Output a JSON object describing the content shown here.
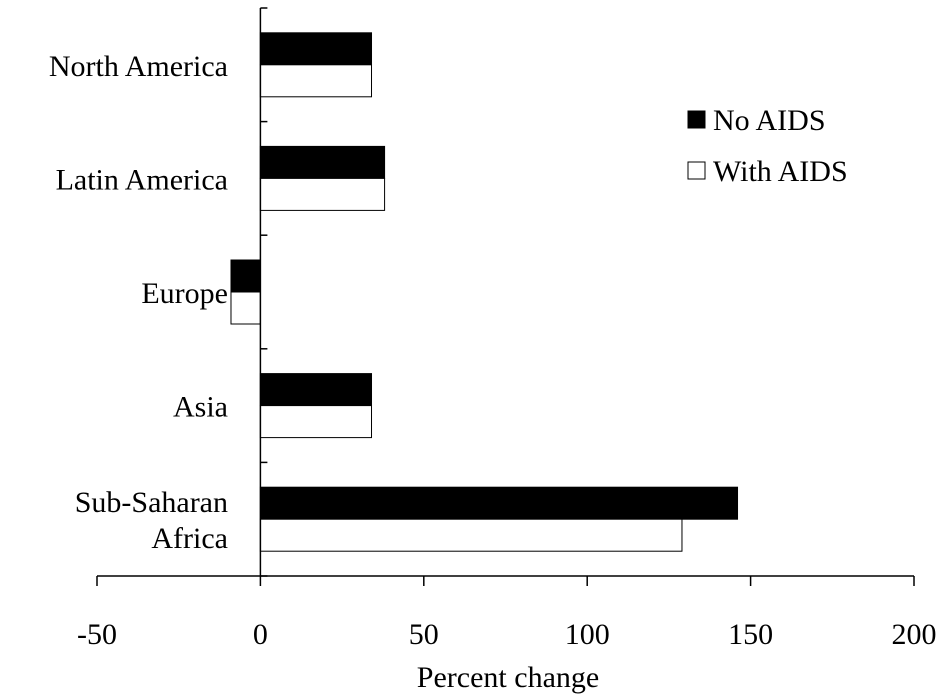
{
  "chart_data": {
    "type": "bar",
    "orientation": "horizontal",
    "categories": [
      [
        "North America"
      ],
      [
        "Latin America"
      ],
      [
        "Europe"
      ],
      [
        "Asia"
      ],
      [
        "Sub-Saharan",
        "Africa"
      ]
    ],
    "series": [
      {
        "name": "No AIDS",
        "color": "#000000",
        "values": [
          34,
          38,
          -9,
          34,
          146
        ]
      },
      {
        "name": "With AIDS",
        "color": "#ffffff",
        "values": [
          34,
          38,
          -9,
          34,
          129
        ]
      }
    ],
    "xlabel": "Percent change",
    "ylabel": "",
    "xlim": [
      -50,
      200
    ],
    "xticks": [
      -50,
      0,
      50,
      100,
      150,
      200
    ],
    "grid": false,
    "legend": "right"
  }
}
